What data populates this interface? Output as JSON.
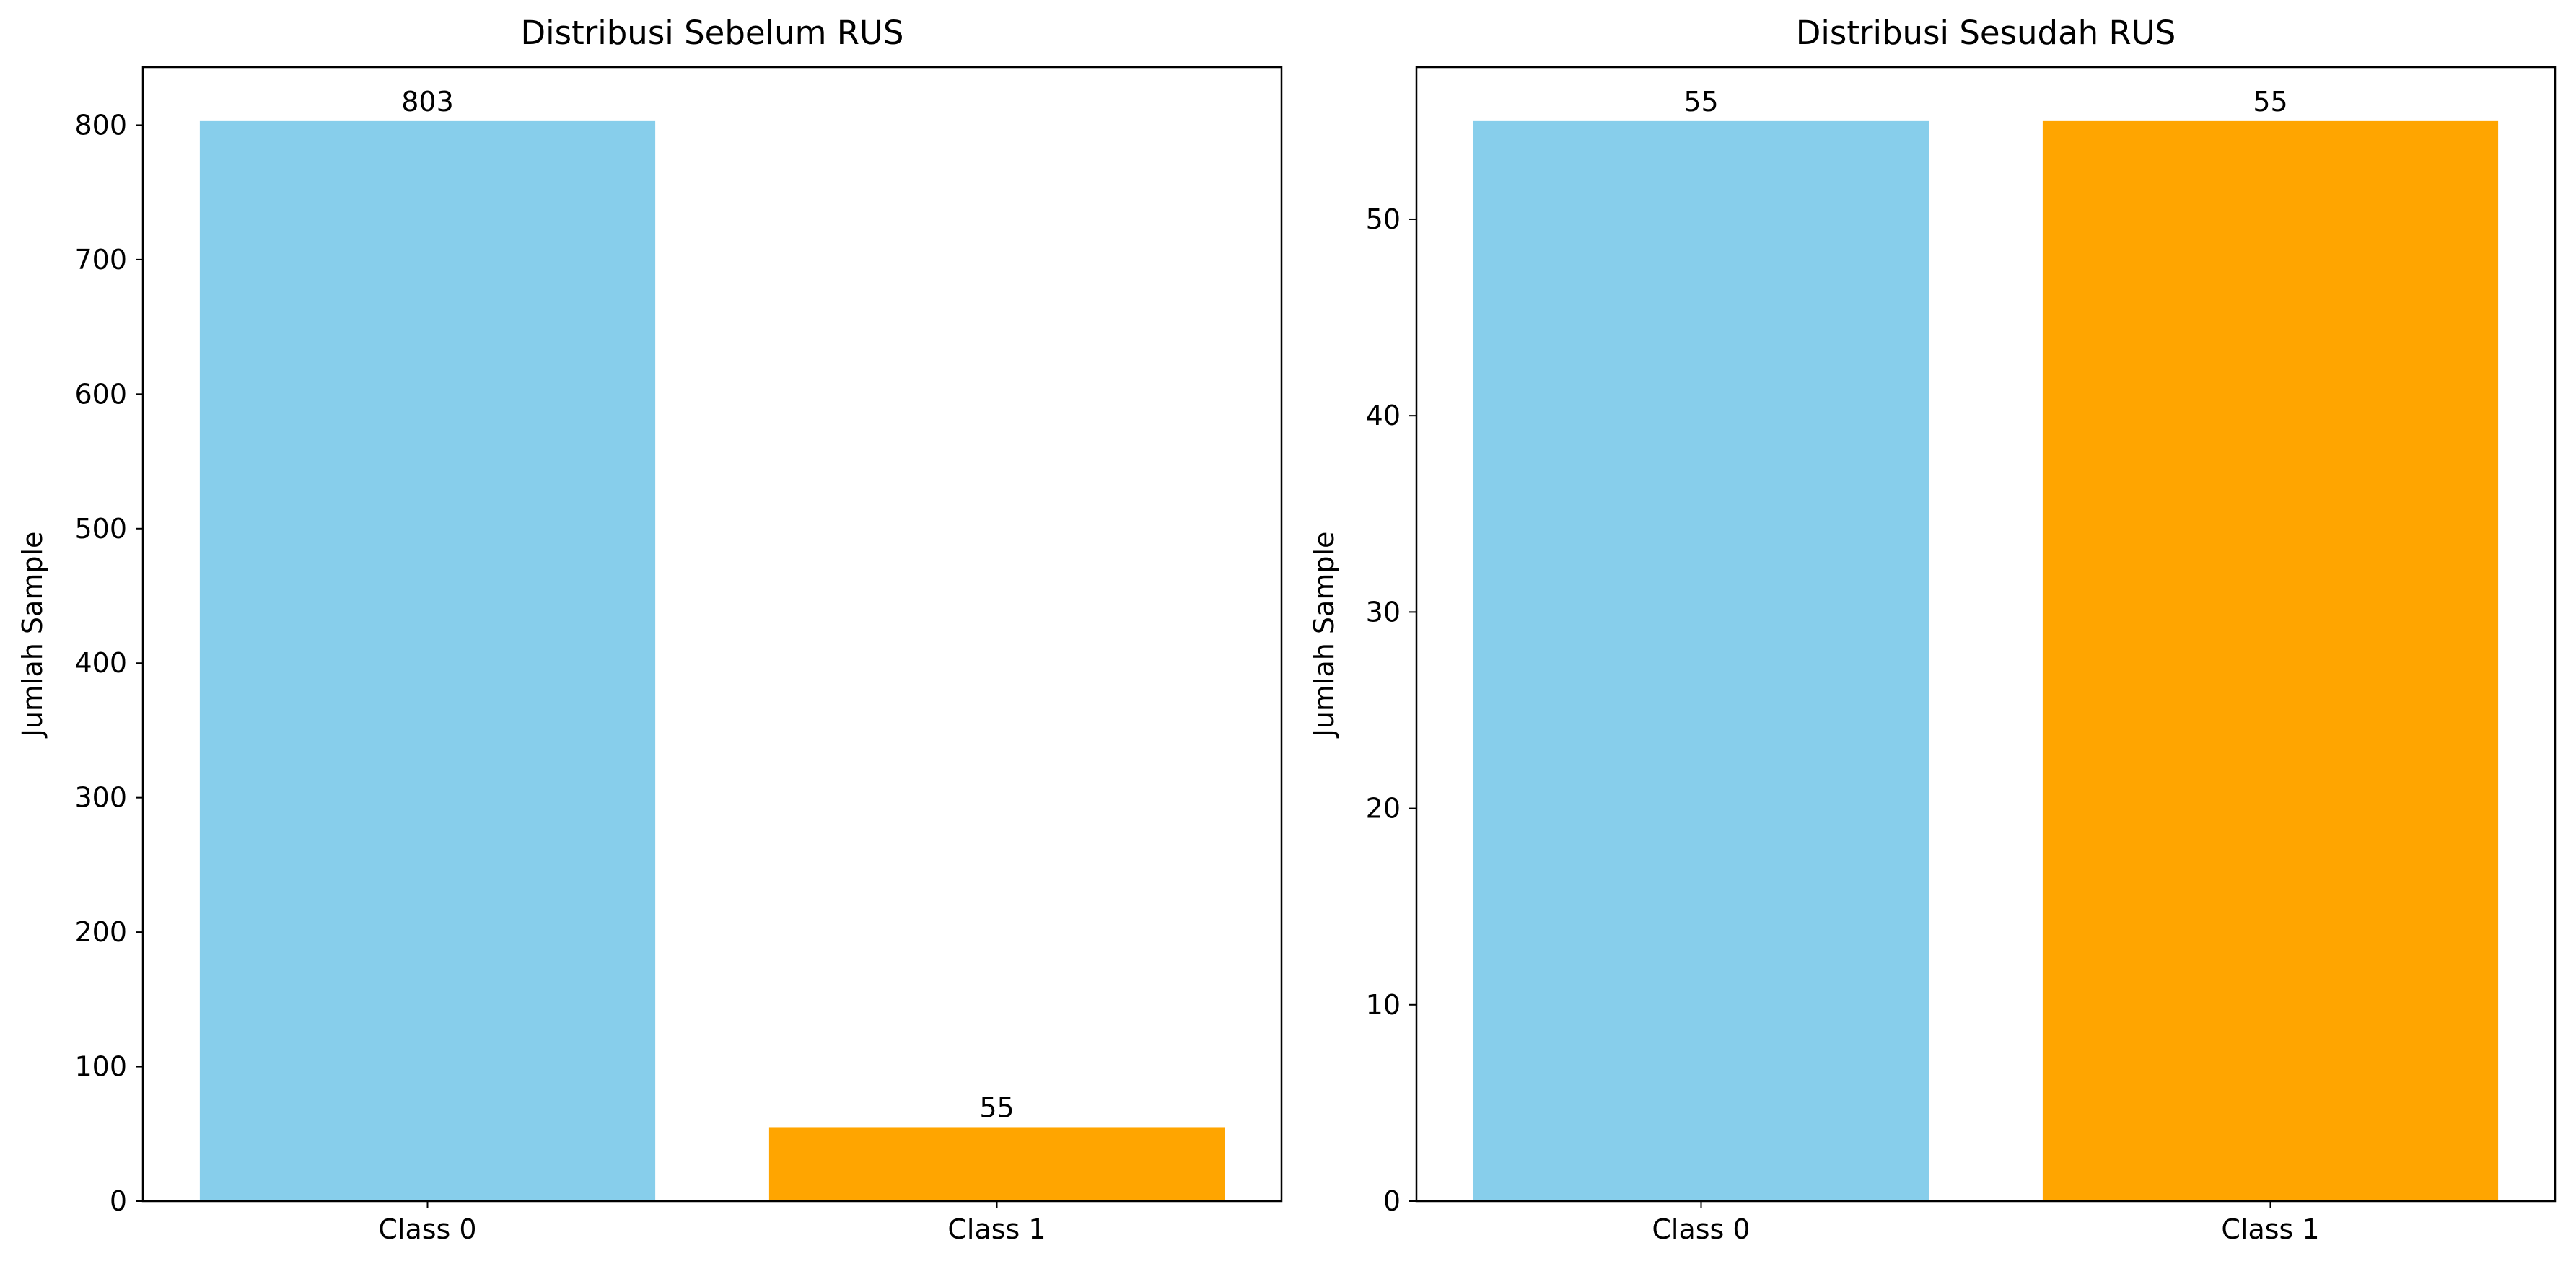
{
  "chart_data": [
    {
      "type": "bar",
      "title": "Distribusi Sebelum RUS",
      "xlabel": "",
      "ylabel": "Jumlah Sample",
      "categories": [
        "Class 0",
        "Class 1"
      ],
      "values": [
        803,
        55
      ],
      "data_labels": [
        "803",
        "55"
      ],
      "colors": [
        "#87CEEB",
        "#FFA500"
      ],
      "ylim": [
        0,
        843.15
      ],
      "yticks": [
        0,
        100,
        200,
        300,
        400,
        500,
        600,
        700,
        800
      ],
      "grid": false,
      "legend": "none"
    },
    {
      "type": "bar",
      "title": "Distribusi Sesudah RUS",
      "xlabel": "",
      "ylabel": "Jumlah Sample",
      "categories": [
        "Class 0",
        "Class 1"
      ],
      "values": [
        55,
        55
      ],
      "data_labels": [
        "55",
        "55"
      ],
      "colors": [
        "#87CEEB",
        "#FFA500"
      ],
      "ylim": [
        0,
        57.75
      ],
      "yticks": [
        0,
        10,
        20,
        30,
        40,
        50
      ],
      "grid": false,
      "legend": "none"
    }
  ]
}
